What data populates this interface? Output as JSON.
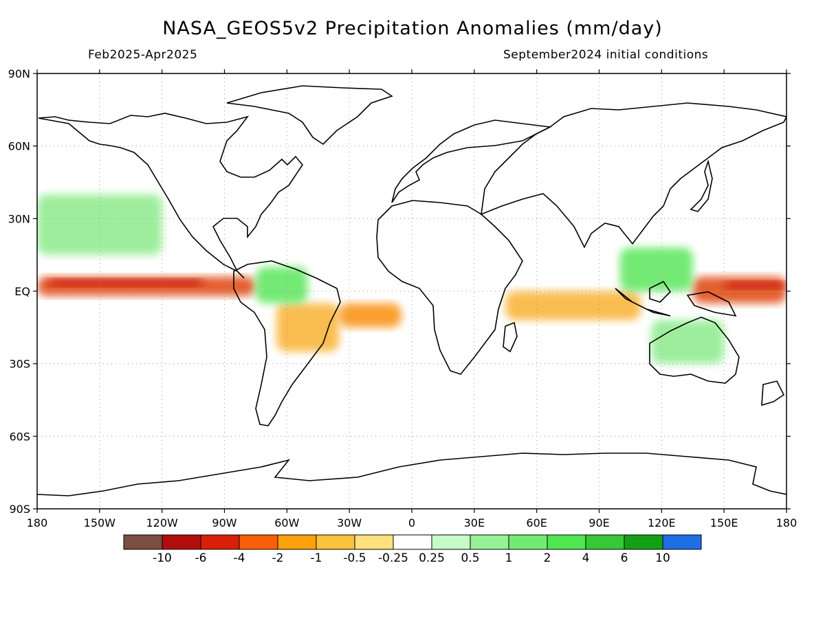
{
  "title": "NASA_GEOS5v2 Precipitation Anomalies (mm/day)",
  "subtitle_left": "Feb2025-Apr2025",
  "subtitle_right": "September2024 initial conditions",
  "map": {
    "projection": "equirectangular",
    "lon_range": [
      -180,
      180
    ],
    "lat_range": [
      -90,
      90
    ],
    "grid": "dotted",
    "lat_ticks": [
      {
        "value": 90,
        "label": "90N"
      },
      {
        "value": 60,
        "label": "60N"
      },
      {
        "value": 30,
        "label": "30N"
      },
      {
        "value": 0,
        "label": "EQ"
      },
      {
        "value": -30,
        "label": "30S"
      },
      {
        "value": -60,
        "label": "60S"
      },
      {
        "value": -90,
        "label": "90S"
      }
    ],
    "lon_ticks": [
      {
        "value": -180,
        "label": "180"
      },
      {
        "value": -150,
        "label": "150W"
      },
      {
        "value": -120,
        "label": "120W"
      },
      {
        "value": -90,
        "label": "90W"
      },
      {
        "value": -60,
        "label": "60W"
      },
      {
        "value": -30,
        "label": "30W"
      },
      {
        "value": 0,
        "label": "0"
      },
      {
        "value": 30,
        "label": "30E"
      },
      {
        "value": 60,
        "label": "60E"
      },
      {
        "value": 90,
        "label": "90E"
      },
      {
        "value": 120,
        "label": "120E"
      },
      {
        "value": 150,
        "label": "150E"
      },
      {
        "value": 180,
        "label": "180"
      }
    ],
    "anomaly_regions": [
      {
        "name": "central-pacific-dry-band",
        "lon": [
          -180,
          -75
        ],
        "lat": [
          -2,
          6
        ],
        "level": -4,
        "color": "#e0440f"
      },
      {
        "name": "central-pacific-core",
        "lon": [
          -175,
          -100
        ],
        "lat": [
          2,
          5
        ],
        "level": -6,
        "color": "#c81208"
      },
      {
        "name": "west-pacific-dry-band",
        "lon": [
          135,
          180
        ],
        "lat": [
          -5,
          6
        ],
        "level": -4,
        "color": "#e0440f"
      },
      {
        "name": "west-pacific-core",
        "lon": [
          150,
          180
        ],
        "lat": [
          1,
          4
        ],
        "level": -6,
        "color": "#c81208"
      },
      {
        "name": "brazil-dry",
        "lon": [
          -65,
          -35
        ],
        "lat": [
          -25,
          -5
        ],
        "level": -1,
        "color": "#f9b130"
      },
      {
        "name": "south-atlantic-dry",
        "lon": [
          -35,
          -5
        ],
        "lat": [
          -15,
          -5
        ],
        "level": -2,
        "color": "#f98f0e"
      },
      {
        "name": "indian-ocean-dry",
        "lon": [
          45,
          110
        ],
        "lat": [
          -12,
          0
        ],
        "level": -1,
        "color": "#f9b130"
      },
      {
        "name": "maritime-continent-wet",
        "lon": [
          100,
          135
        ],
        "lat": [
          0,
          18
        ],
        "level": 2,
        "color": "#5ce65c"
      },
      {
        "name": "north-pacific-wet",
        "lon": [
          -180,
          -120
        ],
        "lat": [
          15,
          40
        ],
        "level": 1,
        "color": "#8ceb8c"
      },
      {
        "name": "amazon-wet",
        "lon": [
          -75,
          -50
        ],
        "lat": [
          -5,
          10
        ],
        "level": 2,
        "color": "#5ce65c"
      },
      {
        "name": "australia-wet",
        "lon": [
          115,
          150
        ],
        "lat": [
          -30,
          -12
        ],
        "level": 1,
        "color": "#8ceb8c"
      }
    ]
  },
  "colorbar": {
    "colors": [
      "#7a4e40",
      "#b20d0d",
      "#da1f08",
      "#fa5f08",
      "#fba10a",
      "#fcc23c",
      "#fde17c",
      "#ffffff",
      "#c8fac8",
      "#96f096",
      "#73eb73",
      "#50e650",
      "#37c837",
      "#14a014",
      "#1e6ee6"
    ],
    "labels": [
      "-10",
      "-6",
      "-4",
      "-2",
      "-1",
      "-0.5",
      "-0.25",
      "0.25",
      "0.5",
      "1",
      "2",
      "4",
      "6",
      "10"
    ]
  }
}
